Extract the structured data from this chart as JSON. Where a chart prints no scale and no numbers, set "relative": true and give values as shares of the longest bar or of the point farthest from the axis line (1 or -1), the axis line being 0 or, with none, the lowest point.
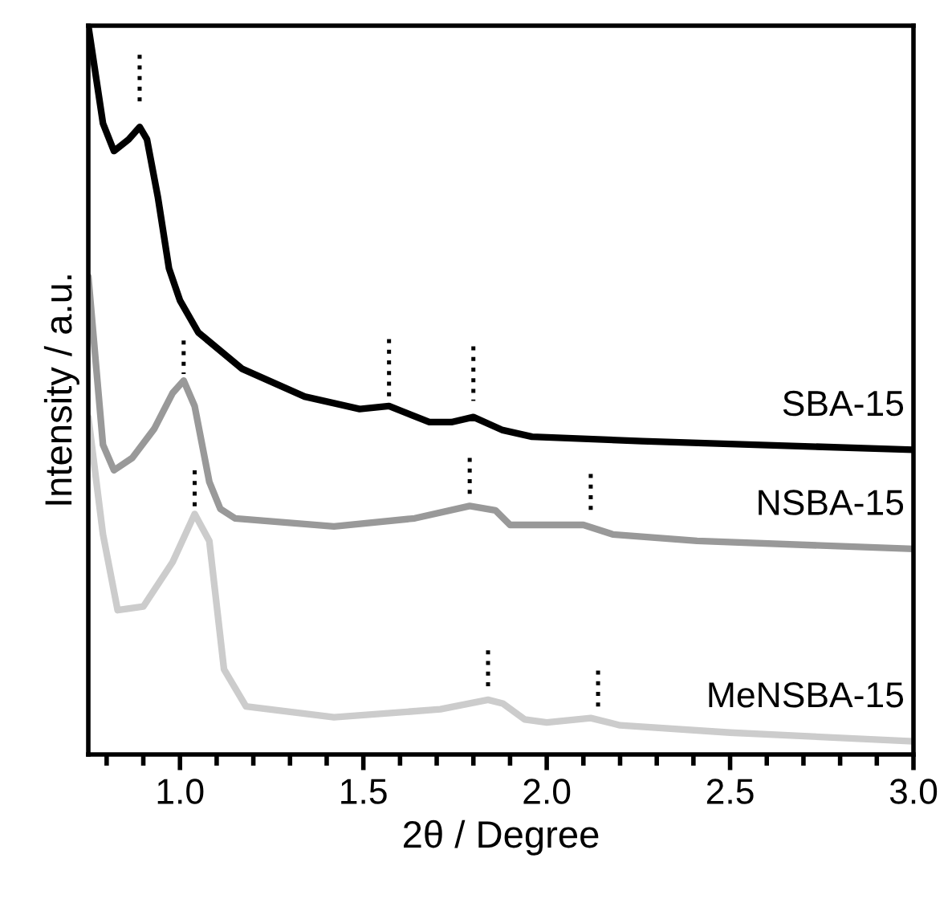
{
  "chart_data": {
    "type": "line",
    "relative": true,
    "xlabel": "2θ / Degree",
    "ylabel": "Intensity / a.u.",
    "xlim": [
      0.75,
      3.0
    ],
    "xticks": [
      {
        "value": 1.0,
        "label": "1.0"
      },
      {
        "value": 1.5,
        "label": "1.5"
      },
      {
        "value": 2.0,
        "label": "2.0"
      },
      {
        "value": 2.5,
        "label": "2.5"
      },
      {
        "value": 3.0,
        "label": "3.0"
      }
    ],
    "grid": false,
    "legend": false,
    "marker": "none",
    "line_style": "solid",
    "tick_labels": "x",
    "series": [
      {
        "name": "SBA-15",
        "color": "#000000",
        "x": [
          0.75,
          0.79,
          0.82,
          0.86,
          0.89,
          0.91,
          0.94,
          0.97,
          1.0,
          1.05,
          1.17,
          1.34,
          1.49,
          1.57,
          1.68,
          1.74,
          1.8,
          1.88,
          1.96,
          2.26,
          3.0
        ],
        "values": [
          1.0,
          0.866,
          0.828,
          0.844,
          0.861,
          0.844,
          0.764,
          0.667,
          0.623,
          0.579,
          0.529,
          0.491,
          0.474,
          0.478,
          0.456,
          0.456,
          0.463,
          0.445,
          0.436,
          0.43,
          0.418
        ]
      },
      {
        "name": "NSBA-15",
        "color": "#999999",
        "x": [
          0.75,
          0.79,
          0.82,
          0.87,
          0.93,
          0.98,
          1.01,
          1.04,
          1.08,
          1.11,
          1.15,
          1.42,
          1.64,
          1.79,
          1.86,
          1.9,
          2.0,
          2.1,
          2.18,
          2.41,
          3.0
        ],
        "values": [
          0.656,
          0.425,
          0.39,
          0.407,
          0.447,
          0.496,
          0.513,
          0.478,
          0.374,
          0.337,
          0.324,
          0.313,
          0.324,
          0.341,
          0.335,
          0.315,
          0.315,
          0.315,
          0.302,
          0.293,
          0.282
        ]
      },
      {
        "name": "MeNSBA-15",
        "color": "#cccccc",
        "x": [
          0.75,
          0.79,
          0.83,
          0.9,
          0.98,
          1.04,
          1.08,
          1.12,
          1.18,
          1.42,
          1.71,
          1.84,
          1.88,
          1.94,
          2.0,
          2.12,
          2.2,
          2.5,
          3.0
        ],
        "values": [
          0.463,
          0.302,
          0.198,
          0.203,
          0.264,
          0.33,
          0.293,
          0.117,
          0.066,
          0.051,
          0.062,
          0.075,
          0.07,
          0.048,
          0.044,
          0.05,
          0.04,
          0.03,
          0.018
        ]
      },
      {
        "color": "#000000",
        "line_style": "dotted",
        "x": [
          0.89,
          0.89
        ],
        "values": [
          0.96,
          0.89
        ]
      },
      {
        "color": "#000000",
        "line_style": "dotted",
        "x": [
          1.57,
          1.57
        ],
        "values": [
          0.57,
          0.49
        ]
      },
      {
        "color": "#000000",
        "line_style": "dotted",
        "x": [
          1.8,
          1.8
        ],
        "values": [
          0.56,
          0.485
        ]
      },
      {
        "color": "#000000",
        "line_style": "dotted",
        "x": [
          1.01,
          1.01
        ],
        "values": [
          0.568,
          0.522
        ]
      },
      {
        "color": "#000000",
        "line_style": "dotted",
        "x": [
          1.79,
          1.79
        ],
        "values": [
          0.407,
          0.357
        ]
      },
      {
        "color": "#000000",
        "line_style": "dotted",
        "x": [
          2.12,
          2.12
        ],
        "values": [
          0.385,
          0.335
        ]
      },
      {
        "color": "#000000",
        "line_style": "dotted",
        "x": [
          1.04,
          1.04
        ],
        "values": [
          0.39,
          0.337
        ]
      },
      {
        "color": "#000000",
        "line_style": "dotted",
        "x": [
          1.84,
          1.84
        ],
        "values": [
          0.143,
          0.093
        ]
      },
      {
        "color": "#000000",
        "line_style": "dotted",
        "x": [
          2.14,
          2.14
        ],
        "values": [
          0.115,
          0.062
        ]
      }
    ]
  }
}
